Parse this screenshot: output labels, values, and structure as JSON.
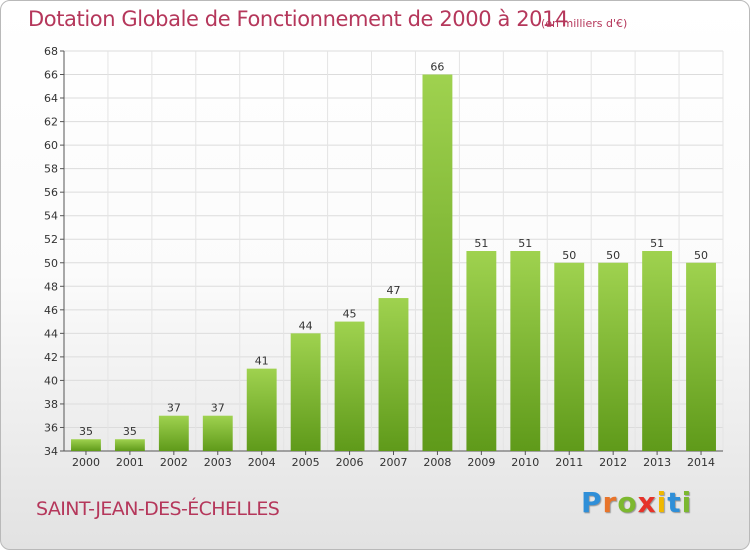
{
  "header": {
    "title": "Dotation Globale de Fonctionnement de 2000 à 2014",
    "unit": "(en milliers d'€)"
  },
  "footer": {
    "commune": "SAINT-JEAN-DES-ÉCHELLES",
    "logo_text": "Proxiti",
    "logo_letters": [
      {
        "ch": "P",
        "color": "#2f8fd8"
      },
      {
        "ch": "r",
        "color": "#e8742a"
      },
      {
        "ch": "o",
        "color": "#7cb82f"
      },
      {
        "ch": "x",
        "color": "#e6332a"
      },
      {
        "ch": "i",
        "color": "#f0b800"
      },
      {
        "ch": "t",
        "color": "#2f8fd8"
      },
      {
        "ch": "i",
        "color": "#7cb82f"
      }
    ]
  },
  "chart_data": {
    "type": "bar",
    "title": "Dotation Globale de Fonctionnement de 2000 à 2014",
    "subtitle": "(en milliers d'€)",
    "xlabel": "",
    "ylabel": "",
    "categories": [
      "2000",
      "2001",
      "2002",
      "2003",
      "2004",
      "2005",
      "2006",
      "2007",
      "2008",
      "2009",
      "2010",
      "2011",
      "2012",
      "2013",
      "2014"
    ],
    "values": [
      35,
      35,
      37,
      37,
      41,
      44,
      45,
      47,
      66,
      51,
      51,
      50,
      50,
      51,
      50
    ],
    "ylim": [
      34,
      68
    ],
    "yticks": [
      34,
      36,
      38,
      40,
      42,
      44,
      46,
      48,
      50,
      52,
      54,
      56,
      58,
      60,
      62,
      64,
      66,
      68
    ],
    "grid": true,
    "legend": "none",
    "bar_color_top": "#9fd24f",
    "bar_color_bottom": "#5f9a1a"
  }
}
